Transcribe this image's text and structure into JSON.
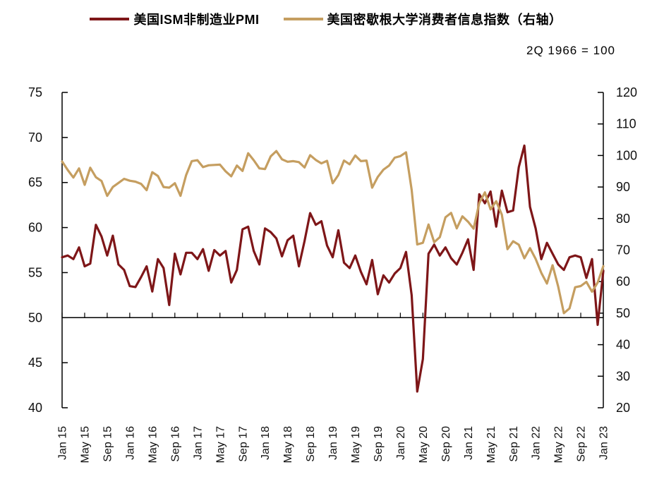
{
  "legend": {
    "items": [
      {
        "label": "美国ISM非制造业PMI",
        "color": "#7E1618"
      },
      {
        "label": "美国密歇根大学消费者信息指数（右轴）",
        "color": "#C59E60"
      }
    ]
  },
  "note": "2Q 1966 = 100",
  "chart_data": {
    "type": "line",
    "title": "",
    "x_unit": "month",
    "x_start": "Jan 2015",
    "x_end": "Jan 2023",
    "x_tick_labels": [
      "Jan 15",
      "May 15",
      "Sep 15",
      "Jan 16",
      "May 16",
      "Sep 16",
      "Jan 17",
      "May 17",
      "Sep 17",
      "Jan 18",
      "May 18",
      "Sep 18",
      "Jan 19",
      "May 19",
      "Sep 19",
      "Jan 20",
      "May 20",
      "Sep 20",
      "Jan 21",
      "May 21",
      "Sep 21",
      "Jan 22",
      "May 22",
      "Sep 22",
      "Jan 23"
    ],
    "x_tick_step_months": 4,
    "grid": false,
    "legend_position": "top",
    "left_axis": {
      "min": 40,
      "max": 75,
      "ticks": [
        75,
        70,
        65,
        60,
        55,
        50,
        45,
        40
      ],
      "baseline": 50
    },
    "right_axis": {
      "min": 20,
      "max": 120,
      "ticks": [
        120,
        110,
        100,
        90,
        80,
        70,
        60,
        50,
        40,
        30,
        20
      ],
      "note": "2Q 1966 = 100"
    },
    "series": [
      {
        "name": "美国ISM非制造业PMI",
        "axis": "left",
        "color": "#7E1618",
        "values": [
          56.7,
          56.9,
          56.5,
          57.8,
          55.7,
          56.0,
          60.3,
          59.0,
          56.9,
          59.1,
          55.9,
          55.3,
          53.5,
          53.4,
          54.5,
          55.7,
          52.9,
          56.5,
          55.5,
          51.4,
          57.1,
          54.8,
          57.2,
          57.2,
          56.5,
          57.6,
          55.2,
          57.5,
          56.9,
          57.4,
          53.9,
          55.3,
          59.8,
          60.1,
          57.4,
          55.9,
          59.9,
          59.5,
          58.8,
          56.8,
          58.6,
          59.1,
          55.7,
          58.5,
          61.6,
          60.3,
          60.7,
          58.0,
          56.7,
          59.7,
          56.1,
          55.5,
          56.9,
          55.1,
          53.7,
          56.4,
          52.6,
          54.7,
          53.9,
          54.9,
          55.5,
          57.3,
          52.5,
          41.8,
          45.4,
          57.1,
          58.1,
          56.9,
          57.8,
          56.6,
          55.9,
          57.2,
          58.7,
          55.3,
          63.7,
          62.7,
          64.0,
          60.1,
          64.1,
          61.7,
          61.9,
          66.7,
          69.1,
          62.3,
          59.9,
          56.5,
          58.3,
          57.1,
          55.9,
          55.3,
          56.7,
          56.9,
          56.7,
          54.4,
          56.5,
          49.2,
          55.2
        ]
      },
      {
        "name": "美国密歇根大学消费者信息指数（右轴）",
        "axis": "right",
        "color": "#C59E60",
        "values": [
          98.1,
          95.4,
          93.0,
          95.9,
          90.7,
          96.1,
          93.1,
          91.9,
          87.2,
          90.0,
          91.3,
          92.6,
          92.0,
          91.7,
          91.0,
          89.0,
          94.7,
          93.5,
          90.0,
          89.8,
          91.2,
          87.2,
          93.8,
          98.2,
          98.5,
          96.3,
          96.9,
          97.0,
          97.1,
          95.0,
          93.4,
          96.8,
          95.1,
          100.7,
          98.5,
          95.9,
          95.7,
          99.7,
          101.4,
          98.8,
          98.0,
          98.2,
          97.9,
          96.2,
          100.1,
          98.6,
          97.5,
          98.3,
          91.2,
          93.8,
          98.4,
          97.2,
          100.0,
          98.2,
          98.4,
          89.8,
          93.2,
          95.5,
          96.8,
          99.3,
          99.8,
          101.0,
          89.1,
          71.8,
          72.3,
          78.1,
          72.5,
          74.1,
          80.4,
          81.8,
          76.9,
          80.7,
          79.0,
          76.8,
          84.9,
          88.3,
          82.9,
          85.5,
          81.2,
          70.3,
          72.8,
          71.7,
          67.4,
          70.6,
          67.2,
          62.8,
          59.4,
          65.2,
          58.4,
          50.0,
          51.5,
          58.2,
          58.6,
          59.9,
          56.8,
          59.7,
          64.9
        ]
      }
    ]
  }
}
